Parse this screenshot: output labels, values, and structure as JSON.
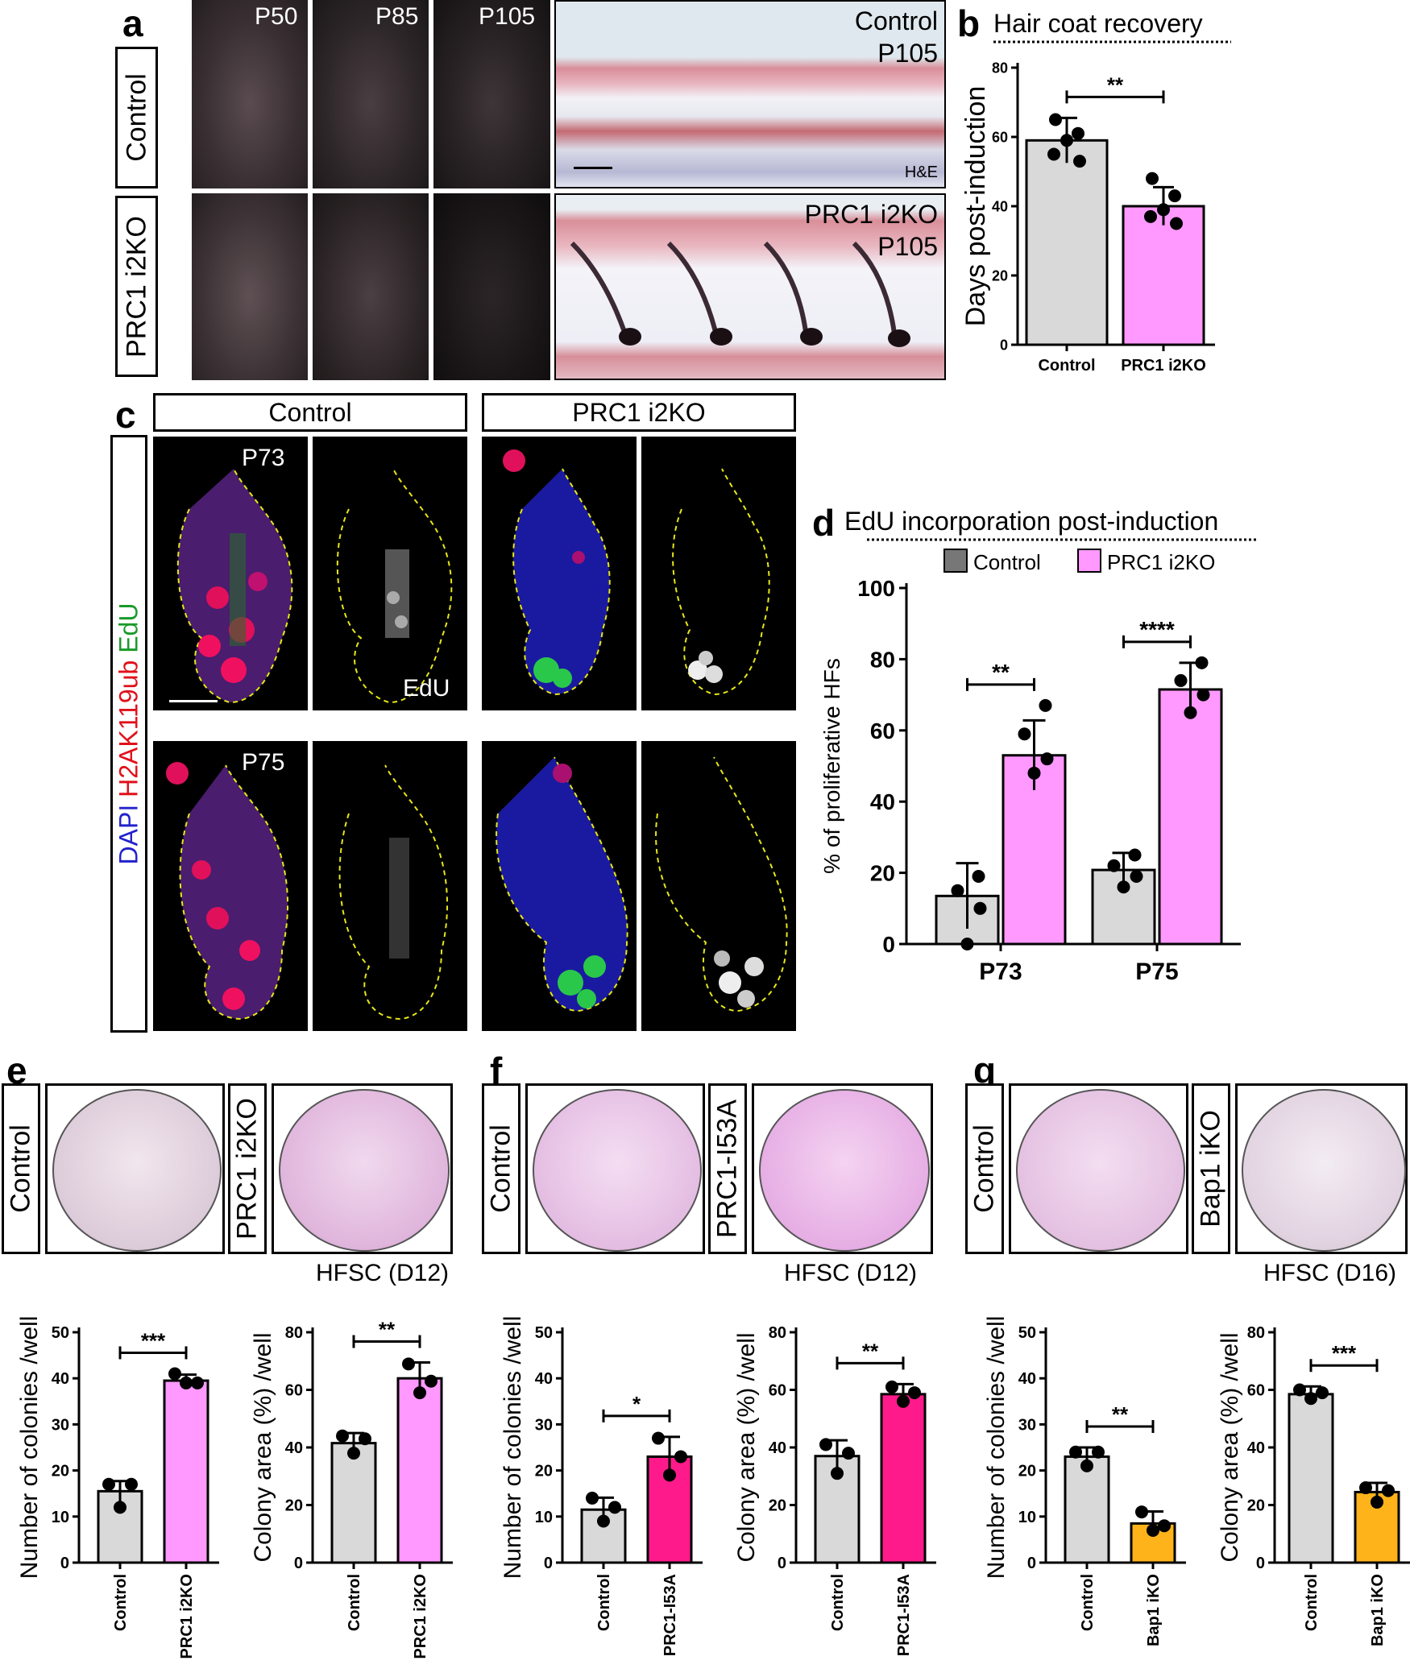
{
  "panels": {
    "a": {
      "letter": "a",
      "row_labels": [
        "Control",
        "PRC1 i2KO"
      ],
      "timepoints": [
        "P50",
        "P85",
        "P105"
      ],
      "histology": [
        {
          "line1": "Control",
          "line2": "P105",
          "stain": "H&E"
        },
        {
          "line1": "PRC1 i2KO",
          "line2": "P105"
        }
      ]
    },
    "c": {
      "letter": "c",
      "col_labels": [
        "Control",
        "PRC1 i2KO"
      ],
      "side_label": {
        "dapi": "DAPI",
        "h2ak": "H2AK119ub",
        "edu": "EdU"
      },
      "timepoints": [
        "P73",
        "P75"
      ],
      "edu_label": "EdU"
    },
    "e": {
      "letter": "e",
      "labels": [
        "Control",
        "PRC1 i2KO"
      ],
      "caption": "HFSC (D12)"
    },
    "f": {
      "letter": "f",
      "labels": [
        "Control",
        "PRC1-I53A"
      ],
      "caption": "HFSC (D12)"
    },
    "g": {
      "letter": "g",
      "labels": [
        "Control",
        "Bap1 iKO"
      ],
      "caption": "HFSC (D16)"
    }
  },
  "colors": {
    "control": "#d9d9d9",
    "prc1_i2ko": "#ff99ff",
    "prc1_i53a": "#ff1a8c",
    "bap1_iko": "#ffb31a",
    "dashed_outline": "#e6e619"
  },
  "chart_data": [
    {
      "id": "b",
      "letter": "b",
      "type": "bar",
      "title": "Hair coat recovery",
      "ylabel": "Days post-induction",
      "categories": [
        "Control",
        "PRC1 i2KO"
      ],
      "values": [
        59,
        40
      ],
      "errors": [
        6.5,
        5.5
      ],
      "points": [
        [
          65,
          61,
          59,
          55,
          53
        ],
        [
          48,
          43,
          39,
          37,
          35
        ]
      ],
      "yticks": [
        0,
        20,
        40,
        60,
        80
      ],
      "ylim": [
        0,
        80
      ],
      "significance": [
        {
          "from": 0,
          "to": 1,
          "label": "**"
        }
      ]
    },
    {
      "id": "d",
      "letter": "d",
      "type": "bar",
      "title": "EdU incorporation post-induction",
      "ylabel": "% of proliferative HFs",
      "groups": [
        "P73",
        "P75"
      ],
      "legend": [
        "Control",
        "PRC1 i2KO"
      ],
      "series": [
        {
          "name": "Control",
          "values": [
            13.5,
            20.8
          ],
          "errors": [
            9.2,
            4.8
          ],
          "points": [
            [
              19,
              15,
              10,
              0
            ],
            [
              25,
              22,
              19,
              16
            ]
          ]
        },
        {
          "name": "PRC1 i2KO",
          "values": [
            53,
            71.5
          ],
          "errors": [
            9.8,
            7.5
          ],
          "points": [
            [
              67,
              59,
              52,
              48
            ],
            [
              79,
              74,
              70,
              65
            ]
          ]
        }
      ],
      "yticks": [
        0,
        20,
        40,
        60,
        80,
        100
      ],
      "ylim": [
        0,
        100
      ],
      "significance": [
        {
          "group": 0,
          "label": "**"
        },
        {
          "group": 1,
          "label": "****"
        }
      ]
    },
    {
      "id": "e1",
      "type": "bar",
      "ylabel": "Number of colonies /well",
      "categories": [
        "Control",
        "PRC1 i2KO"
      ],
      "values": [
        15.5,
        39.5
      ],
      "errors": [
        2.2,
        1.3
      ],
      "points": [
        [
          17,
          17,
          12
        ],
        [
          41,
          39,
          39
        ]
      ],
      "yticks": [
        0,
        10,
        20,
        30,
        40,
        50
      ],
      "ylim": [
        0,
        50
      ],
      "significance": [
        {
          "from": 0,
          "to": 1,
          "label": "***"
        }
      ]
    },
    {
      "id": "e2",
      "type": "bar",
      "ylabel": "Colony area (%) /well",
      "categories": [
        "Control",
        "PRC1 i2KO"
      ],
      "values": [
        41.5,
        64
      ],
      "errors": [
        3.5,
        5.5
      ],
      "points": [
        [
          44,
          43,
          38
        ],
        [
          69,
          63,
          59
        ]
      ],
      "yticks": [
        0,
        20,
        40,
        60,
        80
      ],
      "ylim": [
        0,
        80
      ],
      "significance": [
        {
          "from": 0,
          "to": 1,
          "label": "**"
        }
      ]
    },
    {
      "id": "f1",
      "type": "bar",
      "ylabel": "Number of colonies /well",
      "categories": [
        "Control",
        "PRC1-I53A"
      ],
      "values": [
        11.5,
        23
      ],
      "errors": [
        2.6,
        4.3
      ],
      "points": [
        [
          14,
          12,
          9
        ],
        [
          27,
          23,
          19
        ]
      ],
      "yticks": [
        0,
        10,
        20,
        30,
        40,
        50
      ],
      "ylim": [
        0,
        50
      ],
      "significance": [
        {
          "from": 0,
          "to": 1,
          "label": "*"
        }
      ]
    },
    {
      "id": "f2",
      "type": "bar",
      "ylabel": "Colony area (%) /well",
      "categories": [
        "Control",
        "PRC1-I53A"
      ],
      "values": [
        37,
        58.5
      ],
      "errors": [
        5.5,
        3.5
      ],
      "points": [
        [
          41,
          38,
          31
        ],
        [
          61,
          59,
          56
        ]
      ],
      "yticks": [
        0,
        20,
        40,
        60,
        80
      ],
      "ylim": [
        0,
        80
      ],
      "significance": [
        {
          "from": 0,
          "to": 1,
          "label": "**"
        }
      ]
    },
    {
      "id": "g1",
      "type": "bar",
      "ylabel": "Number of colonies /well",
      "categories": [
        "Control",
        "Bap1 iKO"
      ],
      "values": [
        23,
        8.5
      ],
      "errors": [
        2,
        2.6
      ],
      "points": [
        [
          24,
          24,
          21
        ],
        [
          11,
          8,
          7
        ]
      ],
      "yticks": [
        0,
        10,
        20,
        30,
        40,
        50
      ],
      "ylim": [
        0,
        50
      ],
      "significance": [
        {
          "from": 0,
          "to": 1,
          "label": "**"
        }
      ]
    },
    {
      "id": "g2",
      "type": "bar",
      "ylabel": "Colony area (%) /well",
      "categories": [
        "Control",
        "Bap1 iKO"
      ],
      "values": [
        58.5,
        24.5
      ],
      "errors": [
        2.7,
        3.2
      ],
      "points": [
        [
          60,
          59,
          57
        ],
        [
          26,
          25,
          21
        ]
      ],
      "yticks": [
        0,
        20,
        40,
        60,
        80
      ],
      "ylim": [
        0,
        80
      ],
      "significance": [
        {
          "from": 0,
          "to": 1,
          "label": "***"
        }
      ]
    }
  ]
}
